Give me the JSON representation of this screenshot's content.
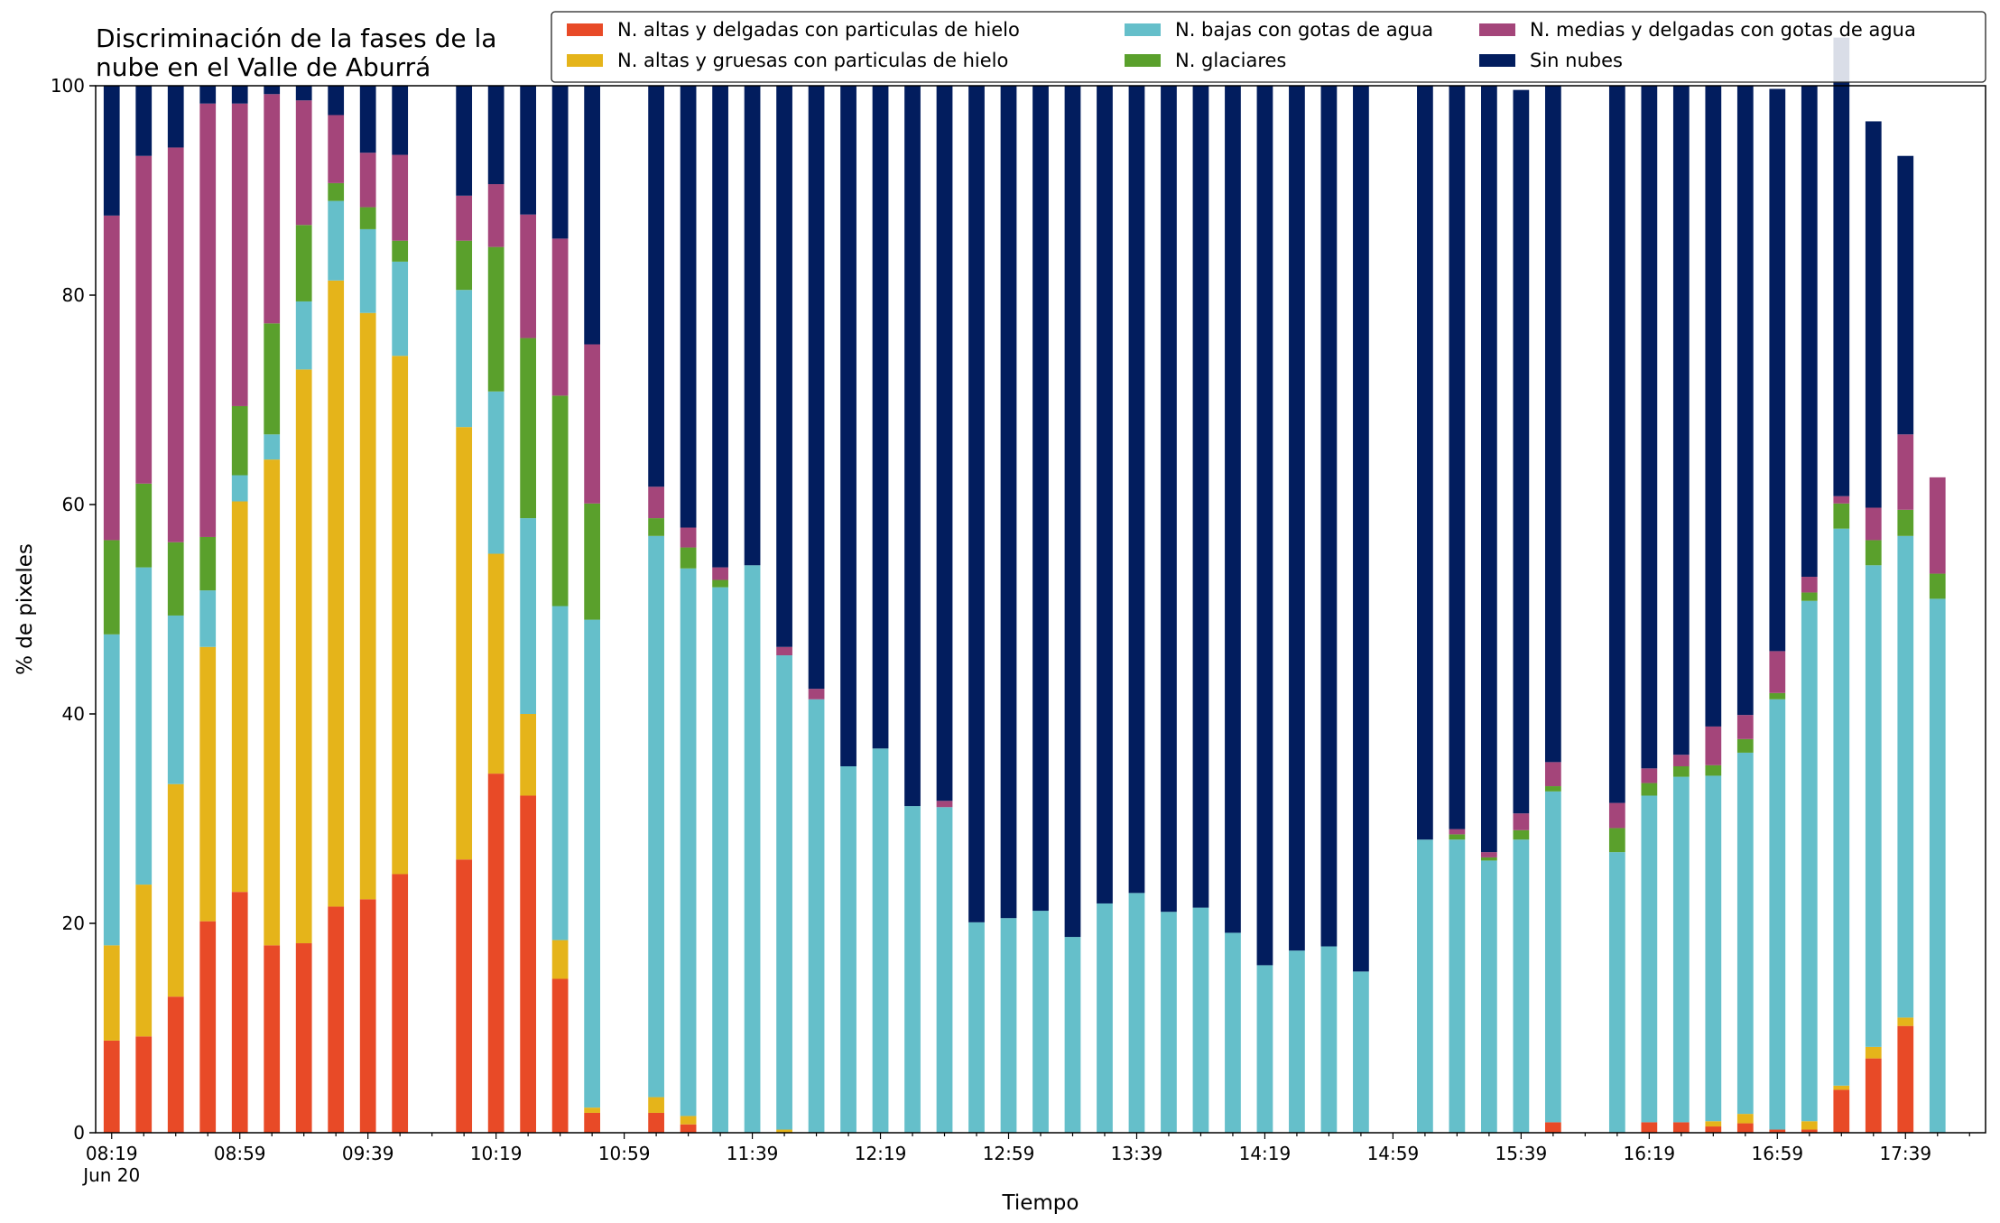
{
  "chart_data": {
    "type": "bar",
    "stacked": true,
    "title": "Discriminación de la fases de la\nnube en el Valle de Aburrá",
    "xlabel": "Tiempo",
    "ylabel": "% de pixeles",
    "ylim": [
      0,
      100
    ],
    "yticks": [
      0,
      20,
      40,
      60,
      80,
      100
    ],
    "grid": false,
    "legend_position": "top-right",
    "x_tick_labels": [
      "08:19",
      "08:59",
      "09:39",
      "10:19",
      "10:59",
      "11:39",
      "12:19",
      "12:59",
      "13:39",
      "14:19",
      "14:59",
      "15:39",
      "16:19",
      "16:59",
      "17:39"
    ],
    "x_date_label": "Jun 20",
    "x_start_time": "08:19",
    "x_step_minutes": 10,
    "x_slots": 59,
    "timestamps": [
      "08:19",
      "08:29",
      "08:39",
      "08:49",
      "08:59",
      "09:09",
      "09:19",
      "09:29",
      "09:39",
      "09:49",
      "10:09",
      "10:19",
      "10:29",
      "10:39",
      "10:49",
      "11:09",
      "11:19",
      "11:29",
      "11:39",
      "11:49",
      "11:59",
      "12:09",
      "12:19",
      "12:29",
      "12:39",
      "12:49",
      "12:59",
      "13:09",
      "13:19",
      "13:29",
      "13:39",
      "13:49",
      "13:59",
      "14:09",
      "14:19",
      "14:29",
      "14:39",
      "14:49",
      "15:09",
      "15:19",
      "15:29",
      "15:39",
      "15:49",
      "16:09",
      "16:19",
      "16:29",
      "16:39",
      "16:49",
      "16:59",
      "17:09",
      "17:19",
      "17:29",
      "17:39",
      "17:49"
    ],
    "series": [
      {
        "name": "N. altas y delgadas con particulas de hielo",
        "color": "#e84a27",
        "values": [
          8.8,
          9.2,
          13.0,
          20.2,
          23.0,
          17.9,
          18.1,
          21.6,
          22.3,
          24.7,
          26.1,
          34.3,
          32.2,
          14.7,
          1.9,
          1.9,
          0.8,
          0,
          0,
          0,
          0,
          0,
          0,
          0,
          0,
          0,
          0,
          0,
          0,
          0,
          0,
          0,
          0,
          0,
          0,
          0,
          0,
          0,
          0,
          0,
          0,
          0,
          1.0,
          0,
          1.0,
          1.0,
          0.6,
          0.9,
          0.3,
          0.3,
          4.1,
          7.1,
          10.2,
          0
        ]
      },
      {
        "name": "N. altas y gruesas con particulas de hielo",
        "color": "#e5b41a",
        "values": [
          9.1,
          14.5,
          20.3,
          26.2,
          37.3,
          46.4,
          54.8,
          59.8,
          56.0,
          49.5,
          41.3,
          21.0,
          7.8,
          3.7,
          0.5,
          1.5,
          0.8,
          0,
          0,
          0.3,
          0,
          0,
          0,
          0,
          0,
          0,
          0,
          0,
          0,
          0,
          0,
          0,
          0,
          0,
          0,
          0,
          0,
          0,
          0,
          0,
          0,
          0,
          0,
          0,
          0,
          0,
          0.5,
          0.9,
          0,
          0.8,
          0.4,
          1.1,
          0.8,
          0
        ]
      },
      {
        "name": "N. bajas con gotas de agua",
        "color": "#65bfca",
        "values": [
          29.7,
          30.3,
          16.1,
          5.4,
          2.5,
          2.4,
          6.5,
          7.6,
          8.0,
          9.0,
          13.1,
          15.5,
          18.7,
          31.9,
          46.6,
          53.6,
          52.3,
          52.1,
          54.2,
          45.3,
          41.4,
          35.0,
          36.7,
          31.2,
          31.1,
          20.1,
          20.5,
          21.2,
          18.7,
          21.9,
          22.9,
          21.1,
          21.5,
          19.1,
          16.0,
          17.4,
          17.8,
          15.4,
          28.0,
          28.0,
          26.0,
          28.0,
          31.6,
          26.8,
          31.2,
          33.0,
          33.0,
          34.5,
          41.1,
          49.7,
          53.2,
          46.0,
          46.0,
          51.0
        ]
      },
      {
        "name": "N. glaciares",
        "color": "#5aa02c",
        "values": [
          9.0,
          8.0,
          7.0,
          5.1,
          6.6,
          10.6,
          7.3,
          1.7,
          2.1,
          2.0,
          4.7,
          13.8,
          17.2,
          20.1,
          11.1,
          1.7,
          2.0,
          0.7,
          0,
          0,
          0,
          0,
          0,
          0,
          0,
          0,
          0,
          0,
          0,
          0,
          0,
          0,
          0,
          0,
          0,
          0,
          0,
          0,
          0,
          0.5,
          0.3,
          0.9,
          0.5,
          2.3,
          1.2,
          1.0,
          1.0,
          1.3,
          0.6,
          0.8,
          2.4,
          2.4,
          2.5,
          2.4
        ]
      },
      {
        "name": "N. medias y delgadas con gotas de agua",
        "color": "#a4457a",
        "values": [
          31.0,
          31.3,
          37.7,
          41.4,
          28.9,
          21.9,
          11.9,
          6.5,
          5.2,
          8.2,
          4.3,
          6.0,
          11.8,
          15.0,
          15.2,
          3.0,
          1.9,
          1.2,
          0,
          0.8,
          1.0,
          0,
          0,
          0,
          0.6,
          0,
          0,
          0,
          0,
          0,
          0,
          0,
          0,
          0,
          0,
          0,
          0,
          0,
          0,
          0.5,
          0.5,
          1.6,
          2.3,
          2.4,
          1.4,
          1.1,
          3.7,
          2.3,
          4.0,
          1.5,
          0.7,
          3.1,
          7.2,
          9.2
        ]
      },
      {
        "name": "Sin nubes",
        "color": "#021d5e",
        "values": [
          12.4,
          6.7,
          5.9,
          1.7,
          1.7,
          0.8,
          1.4,
          2.8,
          6.4,
          6.6,
          10.5,
          9.4,
          12.3,
          14.6,
          24.7,
          38.3,
          42.2,
          46.0,
          45.8,
          53.6,
          57.6,
          65.0,
          63.3,
          68.8,
          68.3,
          79.9,
          79.5,
          78.8,
          81.3,
          78.1,
          77.1,
          78.9,
          78.5,
          80.9,
          84.0,
          82.6,
          82.2,
          84.6,
          72.0,
          71.0,
          73.2,
          69.1,
          64.6,
          68.5,
          65.2,
          63.9,
          61.2,
          60.1,
          53.7,
          46.9,
          43.8,
          36.9,
          26.6,
          0
        ]
      }
    ]
  }
}
